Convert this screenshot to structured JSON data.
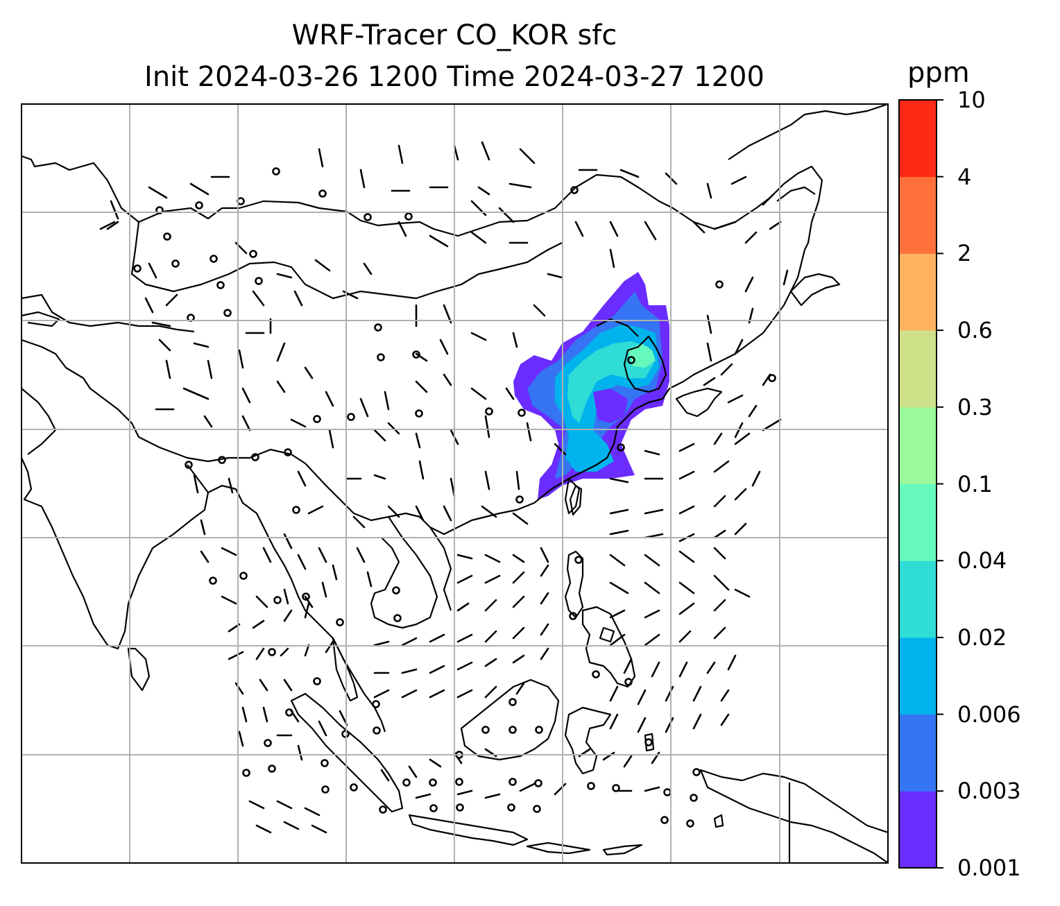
{
  "title": {
    "line1": "WRF-Tracer CO_KOR sfc",
    "line2": "Init 2024-03-26 1200 Time 2024-03-27 1200"
  },
  "colorbar": {
    "unit": "ppm",
    "levels": [
      "0.001",
      "0.003",
      "0.006",
      "0.02",
      "0.04",
      "0.1",
      "0.3",
      "0.6",
      "2",
      "4",
      "10"
    ],
    "colors": [
      "#6a2cff",
      "#3575f3",
      "#01b3ec",
      "#2fdcd6",
      "#66f9be",
      "#9af99a",
      "#cee188",
      "#ffb361",
      "#ff713b",
      "#ff2a16"
    ]
  },
  "map": {
    "background": "#ffffff",
    "gridline_color": "#b0b0b0",
    "coastline_color": "#000000",
    "wind_barbs": "black",
    "plume_region": "Korea / East China"
  }
}
